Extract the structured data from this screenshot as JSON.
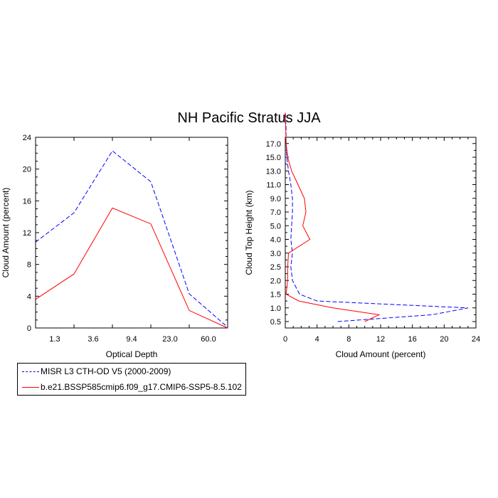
{
  "title": "NH Pacific Stratus JJA",
  "legend": {
    "entries": [
      {
        "label": "MISR L3 CTH-OD V5 (2000-2009)",
        "color": "#0000ff",
        "dash": "dashed"
      },
      {
        "label": "b.e21.BSSP585cmip6.f09_g17.CMIP6-SSP5-8.5.102",
        "color": "#ff0000",
        "dash": "solid"
      }
    ]
  },
  "chart_data": [
    {
      "type": "line",
      "xlabel": "Optical Depth",
      "ylabel": "Cloud Amount (percent)",
      "x_tick_labels": [
        "1.3",
        "3.6",
        "9.4",
        "23.0",
        "60.0"
      ],
      "y_ticks": [
        0,
        4,
        8,
        12,
        16,
        20,
        24
      ],
      "ylim": [
        0,
        24
      ],
      "series": [
        {
          "name": "MISR L3 CTH-OD V5 (2000-2009)",
          "color": "#0000ff",
          "dash": "dashed",
          "values": [
            10.8,
            14.5,
            22.3,
            18.4,
            4.3,
            0.1
          ]
        },
        {
          "name": "b.e21.BSSP585cmip6.f09_g17.CMIP6-SSP5-8.5.102",
          "color": "#ff0000",
          "dash": "solid",
          "values": [
            3.6,
            6.8,
            15.1,
            13.1,
            2.2,
            0.0
          ]
        }
      ]
    },
    {
      "type": "line",
      "xlabel": "Cloud Amount (percent)",
      "ylabel": "Cloud Top Height (km)",
      "x_ticks": [
        0,
        4,
        8,
        12,
        16,
        20,
        24
      ],
      "xlim": [
        0,
        24
      ],
      "y_tick_labels": [
        "0.5",
        "1.0",
        "1.5",
        "2.0",
        "2.5",
        "3.0",
        "4.0",
        "5.0",
        "7.0",
        "9.0",
        "11.0",
        "13.0",
        "15.0",
        "17.0"
      ],
      "y_level_ranks": [
        0,
        0.5,
        1,
        1.5,
        2,
        3,
        4,
        5,
        6,
        7,
        8,
        9,
        10,
        11,
        12,
        13,
        14,
        15,
        15.25
      ],
      "series": [
        {
          "name": "MISR L3 CTH-OD V5 (2000-2009)",
          "color": "#0000ff",
          "dash": "dashed",
          "values": [
            6.6,
            18.5,
            23.0,
            4.0,
            1.8,
            0.9,
            0.7,
            0.9,
            0.7,
            0.8,
            0.9,
            0.9,
            0.7,
            0.4,
            0.2,
            0.1,
            0.1,
            0.05,
            0.0
          ]
        },
        {
          "name": "b.e21.BSSP585cmip6.f09_g17.CMIP6-SSP5-8.5.102",
          "color": "#ff0000",
          "dash": "solid",
          "values": [
            10.0,
            11.8,
            6.0,
            1.7,
            0.1,
            0.3,
            0.3,
            0.4,
            3.1,
            2.2,
            2.6,
            2.4,
            1.6,
            0.8,
            0.3,
            0.1,
            0.05,
            0.0,
            0.0
          ]
        }
      ]
    }
  ]
}
